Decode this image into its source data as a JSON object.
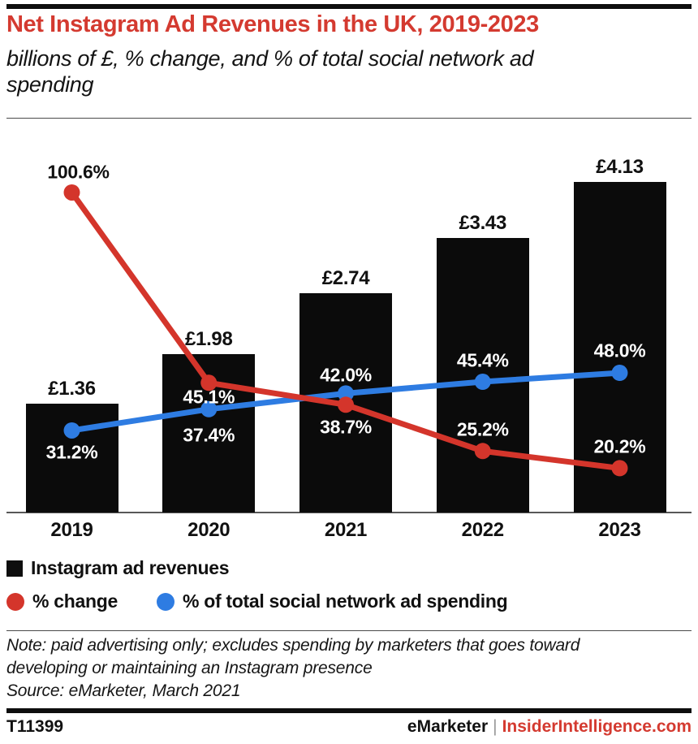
{
  "header": {
    "title": "Net Instagram Ad Revenues in the UK, 2019-2023",
    "subtitle": "billions of £, % change, and % of total social network ad spending"
  },
  "chart_data": {
    "type": "bar+line",
    "categories": [
      "2019",
      "2020",
      "2021",
      "2022",
      "2023"
    ],
    "bar_series": {
      "name": "Instagram ad revenues",
      "unit": "billions of £",
      "values": [
        1.36,
        1.98,
        2.74,
        3.43,
        4.13
      ],
      "labels": [
        "£1.36",
        "£1.98",
        "£2.74",
        "£3.43",
        "£4.13"
      ],
      "color": "#0b0b0b"
    },
    "line_series": [
      {
        "name": "% change",
        "values": [
          100.6,
          45.1,
          38.7,
          25.2,
          20.2
        ],
        "labels": [
          "100.6%",
          "45.1%",
          "38.7%",
          "25.2%",
          "20.2%"
        ],
        "color": "#d4352b"
      },
      {
        "name": "% of total social network ad spending",
        "values": [
          31.2,
          37.4,
          42.0,
          45.4,
          48.0
        ],
        "labels": [
          "31.2%",
          "37.4%",
          "42.0%",
          "45.4%",
          "48.0%"
        ],
        "color": "#2e7ce2"
      }
    ],
    "value_axis": "hidden",
    "grid": "off",
    "legend_position": "below"
  },
  "legend": {
    "bar_label": "Instagram ad revenues",
    "pct_change_label": "% change",
    "share_label": "% of total social network ad spending"
  },
  "notes": {
    "note": "Note: paid advertising only; excludes spending by marketers that goes toward developing or maintaining an Instagram presence",
    "source": "Source: eMarketer, March 2021"
  },
  "footer": {
    "chart_id": "T11399",
    "brand": "eMarketer",
    "separator": "|",
    "site": "InsiderIntelligence.com"
  },
  "colors": {
    "accent_red": "#d4352b",
    "accent_blue": "#2e7ce2",
    "bar_black": "#0b0b0b"
  }
}
